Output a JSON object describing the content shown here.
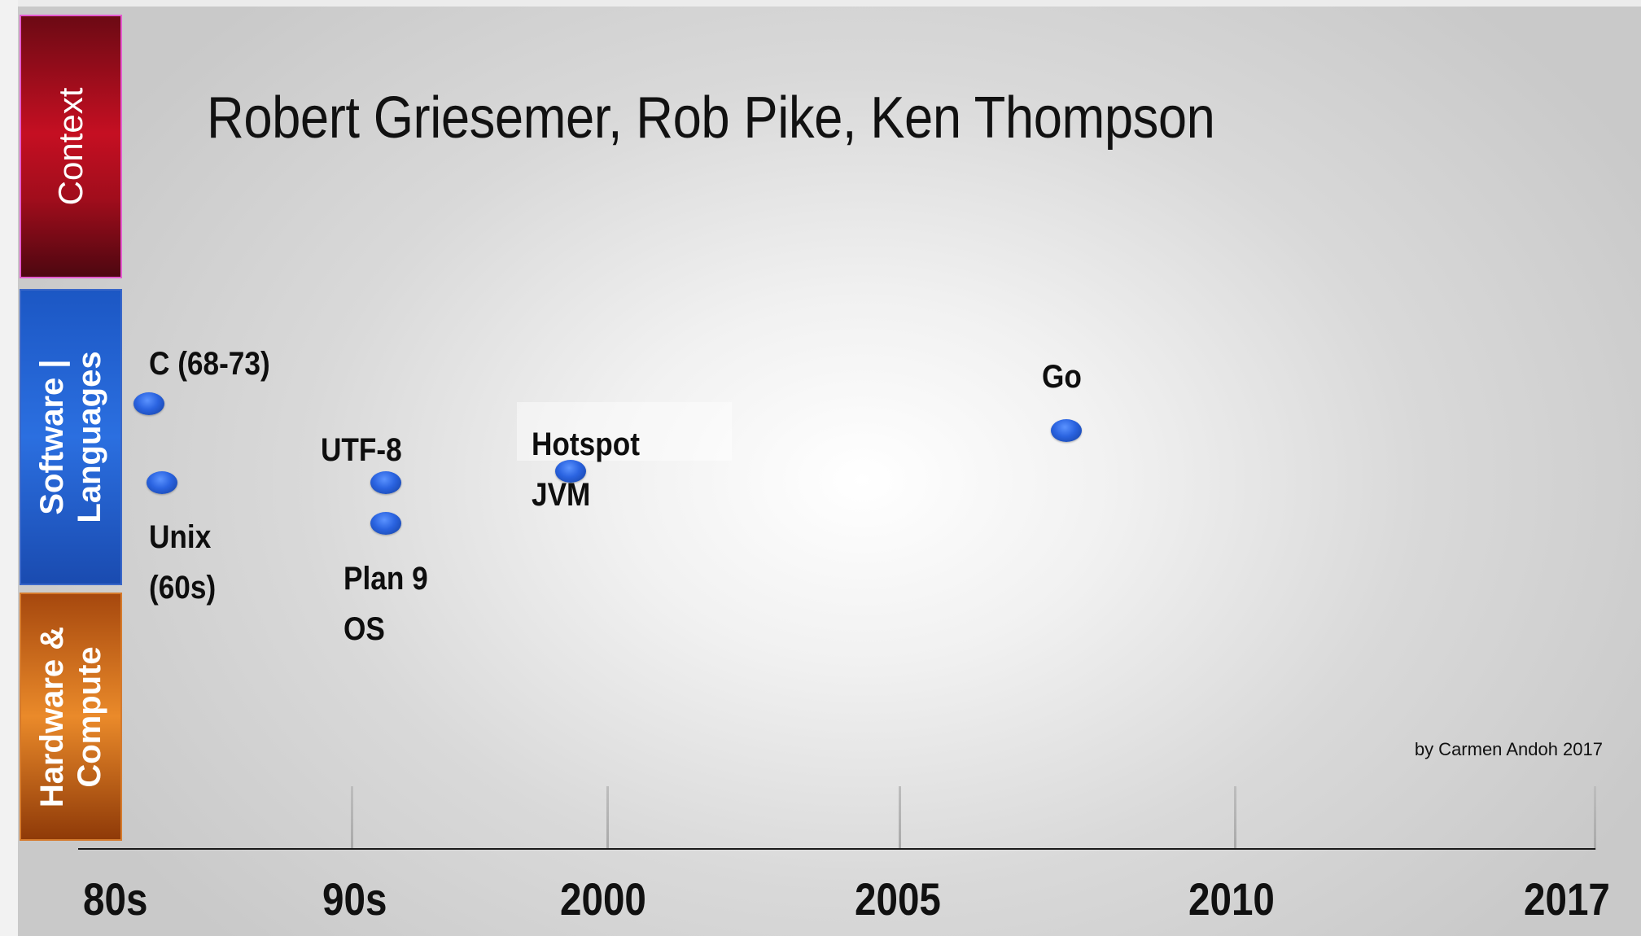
{
  "title": "Robert Griesemer, Rob Pike, Ken Thompson",
  "bands": [
    {
      "name": "context",
      "label": "Context",
      "color": "#c50f22"
    },
    {
      "name": "software-languages",
      "label": "Software |\nLanguages",
      "color": "#2b6fe0"
    },
    {
      "name": "hardware-compute",
      "label": "Hardware &\nCompute",
      "color": "#ea8a2a"
    }
  ],
  "events": [
    {
      "name": "c-language",
      "label": "C (68-73)"
    },
    {
      "name": "unix",
      "label": "Unix\n(60s)"
    },
    {
      "name": "utf-8",
      "label": "UTF-8"
    },
    {
      "name": "plan-9-os",
      "label": "Plan 9\nOS"
    },
    {
      "name": "hotspot-jvm",
      "label": "Hotspot\nJVM"
    },
    {
      "name": "go",
      "label": "Go"
    }
  ],
  "axis": {
    "ticks": [
      "80s",
      "90s",
      "2000",
      "2005",
      "2010",
      "2017"
    ]
  },
  "credit": "by Carmen Andoh 2017",
  "colors": {
    "dot": "#2a63e0",
    "axis": "#1a1a1a"
  }
}
